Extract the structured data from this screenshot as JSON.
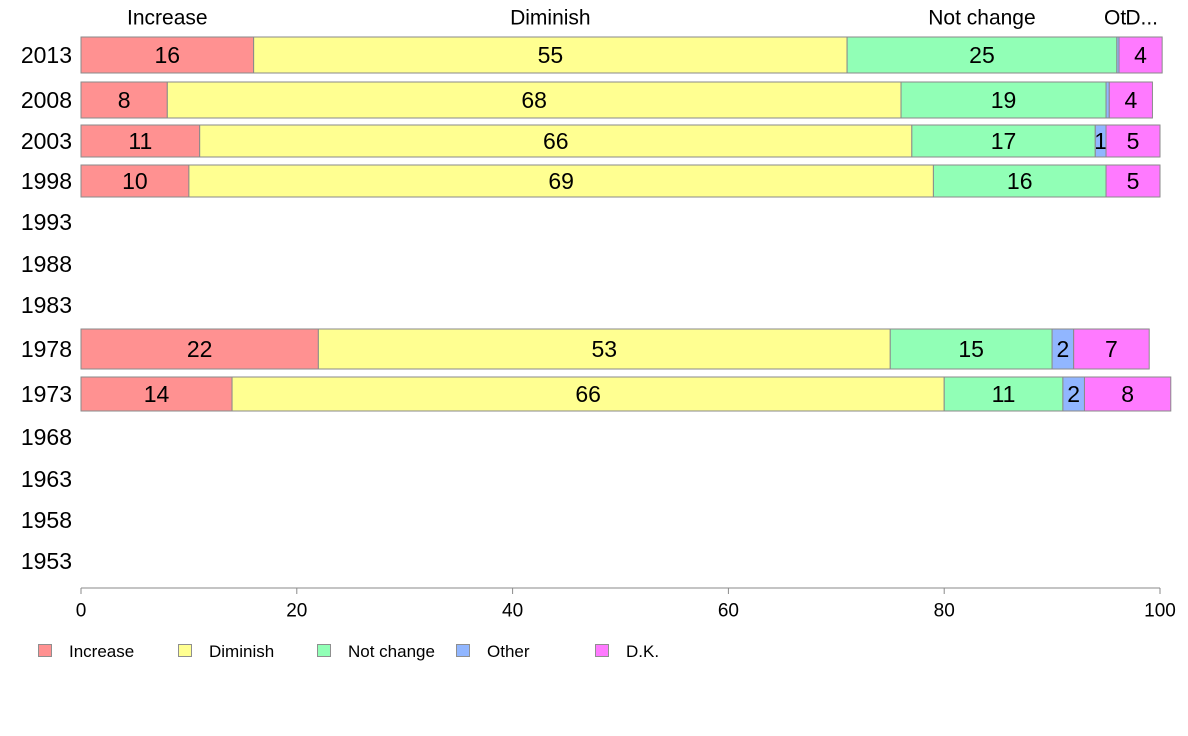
{
  "chart_data": {
    "type": "bar",
    "orientation": "horizontal",
    "stacked": true,
    "categories": [
      "2013",
      "2008",
      "2003",
      "1998",
      "1993",
      "1988",
      "1983",
      "1978",
      "1973",
      "1968",
      "1963",
      "1958",
      "1953"
    ],
    "series": [
      {
        "name": "Increase",
        "color": "#ff9191",
        "values": [
          16,
          8,
          11,
          10,
          null,
          null,
          null,
          22,
          14,
          null,
          null,
          null,
          null
        ]
      },
      {
        "name": "Diminish",
        "color": "#ffff91",
        "values": [
          55,
          68,
          66,
          69,
          null,
          null,
          null,
          53,
          66,
          null,
          null,
          null,
          null
        ]
      },
      {
        "name": "Not change",
        "color": "#91ffb6",
        "values": [
          25,
          19,
          17,
          16,
          null,
          null,
          null,
          15,
          11,
          null,
          null,
          null,
          null
        ]
      },
      {
        "name": "Other",
        "color": "#91b6ff",
        "values": [
          0.2,
          0.3,
          1,
          0,
          null,
          null,
          null,
          2,
          2,
          null,
          null,
          null,
          null
        ]
      },
      {
        "name": "D.K.",
        "color": "#ff7aff",
        "values": [
          4,
          4,
          5,
          5,
          null,
          null,
          null,
          7,
          8,
          null,
          null,
          null,
          null
        ]
      }
    ],
    "data_labels": [
      [
        "16",
        "55",
        "25",
        "",
        "4"
      ],
      [
        "8",
        "68",
        "19",
        "",
        "4"
      ],
      [
        "11",
        "66",
        "17",
        "1",
        "5"
      ],
      [
        "10",
        "69",
        "16",
        "",
        "5"
      ],
      [],
      [],
      [],
      [
        "22",
        "53",
        "15",
        "2",
        "7"
      ],
      [
        "14",
        "66",
        "11",
        "2",
        "8"
      ],
      [],
      [],
      [],
      []
    ],
    "top_labels": [
      "Increase",
      "Diminish",
      "Not change",
      "Ot",
      "D..."
    ],
    "top_labels_row": "2013",
    "xticks": [
      "0",
      "20",
      "40",
      "60",
      "80",
      "100"
    ],
    "xlim": [
      0,
      100
    ],
    "title": "",
    "xlabel": "",
    "ylabel": "",
    "grid": false,
    "legend_position": "bottom-left"
  },
  "legend": {
    "items": [
      {
        "label": "Increase",
        "color": "#ff9191"
      },
      {
        "label": "Diminish",
        "color": "#ffff91"
      },
      {
        "label": "Not change",
        "color": "#91ffb6"
      },
      {
        "label": "Other",
        "color": "#91b6ff"
      },
      {
        "label": "D.K.",
        "color": "#ff7aff"
      }
    ]
  }
}
